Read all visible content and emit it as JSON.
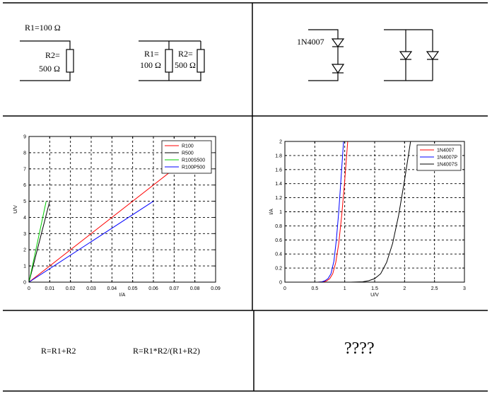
{
  "circuits": {
    "series": {
      "r1_label": "R1=100 Ω",
      "r2_label_line1": "R2=",
      "r2_label_line2": "500 Ω"
    },
    "parallel": {
      "r1_label_line1": "R1=",
      "r1_label_line2": "100 Ω",
      "r2_label_line1": "R2=",
      "r2_label_line2": "500 Ω"
    },
    "diode": {
      "label": "1N4007"
    }
  },
  "formulas": {
    "series": "R=R1+R2",
    "parallel": "R=R1*R2/(R1+R2)",
    "unknown": "????"
  },
  "colors": {
    "red": "#ff0000",
    "black": "#000000",
    "green": "#00cc00",
    "blue": "#0000ff"
  },
  "chart_data": [
    {
      "type": "line",
      "xlabel": "I/A",
      "ylabel": "U/V",
      "xlim": [
        0,
        0.09
      ],
      "ylim": [
        0,
        9
      ],
      "xticks": [
        "0",
        "0.01",
        "0.02",
        "0.03",
        "0.04",
        "0.05",
        "0.06",
        "0.07",
        "0.08",
        "0.09"
      ],
      "yticks": [
        "0",
        "1",
        "2",
        "3",
        "4",
        "5",
        "6",
        "7",
        "8",
        "9"
      ],
      "grid": true,
      "legend_position": "top-right",
      "series": [
        {
          "name": "R100",
          "color": "#ff0000",
          "x": [
            0,
            0.07
          ],
          "y": [
            0,
            7
          ]
        },
        {
          "name": "R500",
          "color": "#000000",
          "x": [
            0,
            0.01
          ],
          "y": [
            0,
            5
          ]
        },
        {
          "name": "R100S500",
          "color": "#00cc00",
          "x": [
            0,
            0.0083
          ],
          "y": [
            0,
            5
          ]
        },
        {
          "name": "R100P500",
          "color": "#0000ff",
          "x": [
            0,
            0.06
          ],
          "y": [
            0,
            5
          ]
        }
      ]
    },
    {
      "type": "line",
      "xlabel": "U/V",
      "ylabel": "I/A",
      "xlim": [
        0,
        3
      ],
      "ylim": [
        0,
        2
      ],
      "xticks": [
        "0",
        "0.5",
        "1",
        "1.5",
        "2",
        "2.5",
        "3"
      ],
      "yticks": [
        "0",
        "0.2",
        "0.4",
        "0.6",
        "0.8",
        "1",
        "1.2",
        "1.4",
        "1.6",
        "1.8",
        "2"
      ],
      "grid": true,
      "legend_position": "top-right",
      "series": [
        {
          "name": "1N4007",
          "color": "#ff0000",
          "x": [
            0.35,
            0.55,
            0.65,
            0.7,
            0.75,
            0.8,
            0.85,
            0.9,
            0.95,
            1.0,
            1.05
          ],
          "y": [
            0,
            0,
            0.005,
            0.02,
            0.05,
            0.12,
            0.28,
            0.55,
            0.95,
            1.45,
            2.0
          ]
        },
        {
          "name": "1N4007P",
          "color": "#0000ff",
          "x": [
            0.35,
            0.55,
            0.62,
            0.67,
            0.72,
            0.77,
            0.82,
            0.86,
            0.9,
            0.94,
            0.98
          ],
          "y": [
            0,
            0,
            0.005,
            0.02,
            0.05,
            0.12,
            0.3,
            0.6,
            1.0,
            1.5,
            2.0
          ]
        },
        {
          "name": "1N4007S",
          "color": "#000000",
          "x": [
            0.35,
            1.1,
            1.3,
            1.4,
            1.5,
            1.6,
            1.7,
            1.8,
            1.9,
            2.0,
            2.1
          ],
          "y": [
            0,
            0,
            0.005,
            0.02,
            0.05,
            0.12,
            0.28,
            0.55,
            0.95,
            1.45,
            2.0
          ]
        }
      ]
    }
  ]
}
